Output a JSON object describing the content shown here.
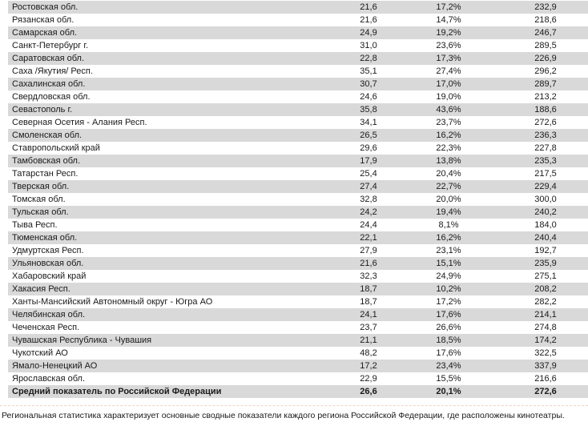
{
  "colors": {
    "stripe": "#d9d9d9",
    "text": "#1a1a1a",
    "background": "#ffffff"
  },
  "table": {
    "rows": [
      {
        "region": "Ростовская обл.",
        "values": [
          "21,6",
          "17,2%",
          "232,9"
        ]
      },
      {
        "region": "Рязанская обл.",
        "values": [
          "21,6",
          "14,7%",
          "218,6"
        ]
      },
      {
        "region": "Самарская обл.",
        "values": [
          "24,9",
          "19,2%",
          "246,7"
        ]
      },
      {
        "region": "Санкт-Петербург г.",
        "values": [
          "31,0",
          "23,6%",
          "289,5"
        ]
      },
      {
        "region": "Саратовская обл.",
        "values": [
          "22,8",
          "17,3%",
          "226,9"
        ]
      },
      {
        "region": "Саха /Якутия/ Респ.",
        "values": [
          "35,1",
          "27,4%",
          "296,2"
        ]
      },
      {
        "region": "Сахалинская обл.",
        "values": [
          "30,7",
          "17,0%",
          "289,7"
        ]
      },
      {
        "region": "Свердловская обл.",
        "values": [
          "24,6",
          "19,0%",
          "213,2"
        ]
      },
      {
        "region": "Севастополь г.",
        "values": [
          "35,8",
          "43,6%",
          "188,6"
        ]
      },
      {
        "region": "Северная Осетия - Алания Респ.",
        "values": [
          "34,1",
          "23,7%",
          "272,6"
        ]
      },
      {
        "region": "Смоленская обл.",
        "values": [
          "26,5",
          "16,2%",
          "236,3"
        ]
      },
      {
        "region": "Ставропольский край",
        "values": [
          "29,6",
          "22,3%",
          "227,8"
        ]
      },
      {
        "region": "Тамбовская обл.",
        "values": [
          "17,9",
          "13,8%",
          "235,3"
        ]
      },
      {
        "region": "Татарстан Респ.",
        "values": [
          "25,4",
          "20,4%",
          "217,5"
        ]
      },
      {
        "region": "Тверская обл.",
        "values": [
          "27,4",
          "22,7%",
          "229,4"
        ]
      },
      {
        "region": "Томская обл.",
        "values": [
          "32,8",
          "20,0%",
          "300,0"
        ]
      },
      {
        "region": "Тульская обл.",
        "values": [
          "24,2",
          "19,4%",
          "240,2"
        ]
      },
      {
        "region": "Тыва Респ.",
        "values": [
          "24,4",
          "8,1%",
          "184,0"
        ]
      },
      {
        "region": "Тюменская обл.",
        "values": [
          "22,1",
          "16,2%",
          "240,4"
        ]
      },
      {
        "region": "Удмуртская Респ.",
        "values": [
          "27,9",
          "23,1%",
          "192,7"
        ]
      },
      {
        "region": "Ульяновская обл.",
        "values": [
          "21,6",
          "15,1%",
          "235,9"
        ]
      },
      {
        "region": "Хабаровский край",
        "values": [
          "32,3",
          "24,9%",
          "275,1"
        ]
      },
      {
        "region": "Хакасия Респ.",
        "values": [
          "18,7",
          "10,2%",
          "208,2"
        ]
      },
      {
        "region": "Ханты-Мансийский Автономный округ - Югра АО",
        "values": [
          "18,7",
          "17,2%",
          "282,2"
        ]
      },
      {
        "region": "Челябинская обл.",
        "values": [
          "24,1",
          "17,6%",
          "214,1"
        ]
      },
      {
        "region": "Чеченская Респ.",
        "values": [
          "23,7",
          "26,6%",
          "274,8"
        ]
      },
      {
        "region": "Чувашская Республика - Чувашия",
        "values": [
          "21,1",
          "18,5%",
          "174,2"
        ]
      },
      {
        "region": "Чукотский АО",
        "values": [
          "48,2",
          "17,6%",
          "322,5"
        ]
      },
      {
        "region": "Ямало-Ненецкий АО",
        "values": [
          "17,2",
          "23,4%",
          "337,9"
        ]
      },
      {
        "region": "Ярославская обл.",
        "values": [
          "22,9",
          "15,5%",
          "216,6"
        ]
      }
    ],
    "summary": {
      "region": "Средний показатель по Российской Федерации",
      "values": [
        "26,6",
        "20,1%",
        "272,6"
      ]
    }
  },
  "footer": {
    "note": "Региональная статистика характеризует основные сводные показатели каждого региона Российской Федерации, где расположены кинотеатры."
  }
}
